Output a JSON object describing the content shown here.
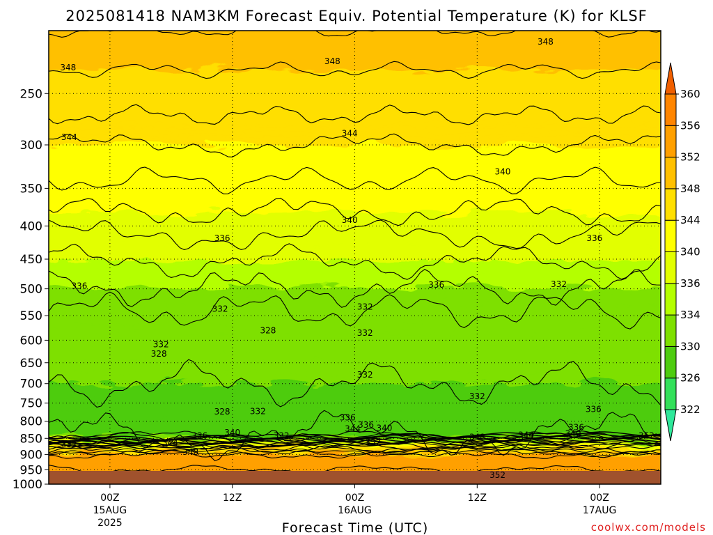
{
  "chart_data": {
    "type": "heatmap",
    "title": "2025081418 NAM3KM Forecast Equiv. Potential Temperature (K) for KLSF",
    "xlabel": "Forecast Time (UTC)",
    "ylabel": "",
    "y_scale": "log",
    "y_axis": "pressure (hPa), inverted (1000 at bottom)",
    "y_ticks": [
      250,
      300,
      350,
      400,
      450,
      500,
      550,
      600,
      650,
      700,
      750,
      800,
      850,
      900,
      950,
      1000
    ],
    "ylim": [
      1000,
      200
    ],
    "x_ticks": [
      {
        "hours": 6,
        "l1": "00Z",
        "l2": "15AUG",
        "l3": "2025"
      },
      {
        "hours": 18,
        "l1": "12Z",
        "l2": "",
        "l3": ""
      },
      {
        "hours": 30,
        "l1": "00Z",
        "l2": "16AUG",
        "l3": ""
      },
      {
        "hours": 42,
        "l1": "12Z",
        "l2": "",
        "l3": ""
      },
      {
        "hours": 54,
        "l1": "00Z",
        "l2": "17AUG",
        "l3": ""
      }
    ],
    "xlim_hours": [
      0,
      60
    ],
    "grid": true,
    "colorbar_levels": [
      322,
      326,
      330,
      334,
      336,
      340,
      344,
      348,
      352,
      356,
      360
    ],
    "colorbar_colors": [
      "#2ee89a",
      "#33e05a",
      "#4ecc10",
      "#7ee000",
      "#b4ff00",
      "#e2ff00",
      "#ffff00",
      "#ffdf00",
      "#ffc000",
      "#ffa000",
      "#ff8500",
      "#f05f00"
    ],
    "profile": [
      {
        "p": 200,
        "theta": 350
      },
      {
        "p": 230,
        "theta": 348
      },
      {
        "p": 270,
        "theta": 346
      },
      {
        "p": 300,
        "theta": 344
      },
      {
        "p": 340,
        "theta": 342
      },
      {
        "p": 380,
        "theta": 340
      },
      {
        "p": 430,
        "theta": 337
      },
      {
        "p": 480,
        "theta": 335
      },
      {
        "p": 540,
        "theta": 332
      },
      {
        "p": 620,
        "theta": 331
      },
      {
        "p": 700,
        "theta": 330
      },
      {
        "p": 780,
        "theta": 329
      },
      {
        "p": 840,
        "theta": 328
      },
      {
        "p": 870,
        "theta": 340
      },
      {
        "p": 900,
        "theta": 352
      },
      {
        "p": 1000,
        "theta": 356
      }
    ],
    "contour_labels": [
      {
        "t": "348",
        "h": 1.9,
        "p": 228
      },
      {
        "t": "348",
        "h": 27.8,
        "p": 223
      },
      {
        "t": "348",
        "h": 48.7,
        "p": 208
      },
      {
        "t": "344",
        "h": 2.0,
        "p": 292
      },
      {
        "t": "344",
        "h": 29.5,
        "p": 288
      },
      {
        "t": "340",
        "h": 44.5,
        "p": 330
      },
      {
        "t": "340",
        "h": 29.5,
        "p": 392
      },
      {
        "t": "336",
        "h": 17.0,
        "p": 418
      },
      {
        "t": "336",
        "h": 53.5,
        "p": 418
      },
      {
        "t": "336",
        "h": 3.0,
        "p": 495
      },
      {
        "t": "336",
        "h": 38.0,
        "p": 493
      },
      {
        "t": "332",
        "h": 50.0,
        "p": 492
      },
      {
        "t": "332",
        "h": 16.8,
        "p": 537
      },
      {
        "t": "332",
        "h": 31.0,
        "p": 533
      },
      {
        "t": "332",
        "h": 31.0,
        "p": 585
      },
      {
        "t": "332",
        "h": 11.0,
        "p": 609
      },
      {
        "t": "328",
        "h": 21.5,
        "p": 580
      },
      {
        "t": "328",
        "h": 10.8,
        "p": 630
      },
      {
        "t": "332",
        "h": 31.0,
        "p": 678
      },
      {
        "t": "332",
        "h": 42.0,
        "p": 732
      },
      {
        "t": "328",
        "h": 17.0,
        "p": 773
      },
      {
        "t": "332",
        "h": 20.5,
        "p": 772
      },
      {
        "t": "336",
        "h": 29.3,
        "p": 790
      },
      {
        "t": "336",
        "h": 31.1,
        "p": 810
      },
      {
        "t": "340",
        "h": 32.9,
        "p": 820
      },
      {
        "t": "344",
        "h": 29.8,
        "p": 822
      },
      {
        "t": "336",
        "h": 51.7,
        "p": 818
      },
      {
        "t": "340",
        "h": 51.4,
        "p": 836
      },
      {
        "t": "336",
        "h": 53.4,
        "p": 767
      },
      {
        "t": "332",
        "h": 2.0,
        "p": 869
      },
      {
        "t": "336",
        "h": 14.8,
        "p": 842
      },
      {
        "t": "340",
        "h": 18.0,
        "p": 833
      },
      {
        "t": "332",
        "h": 22.8,
        "p": 842
      },
      {
        "t": "344",
        "h": 11.9,
        "p": 863
      },
      {
        "t": "348",
        "h": 13.9,
        "p": 893
      },
      {
        "t": "352",
        "h": 31.8,
        "p": 862
      },
      {
        "t": "348",
        "h": 42.0,
        "p": 846
      },
      {
        "t": "344",
        "h": 46.8,
        "p": 840
      },
      {
        "t": "352",
        "h": 58.6,
        "p": 842
      },
      {
        "t": "352",
        "h": 44.0,
        "p": 968
      }
    ]
  },
  "watermark": "coolwx.com/models",
  "watermark_color": "#e02020"
}
